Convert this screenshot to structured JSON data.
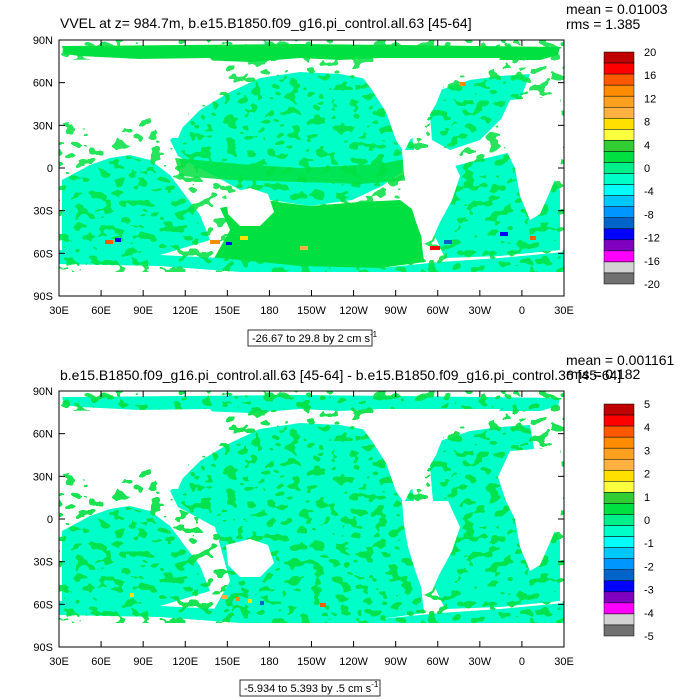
{
  "panels": [
    {
      "title": "VVEL at z= 984.7m, b.e15.B1850.f09_g16.pi_control.all.63 [45-64]",
      "stat_mean": "mean = 0.01003",
      "stat_rms": "rms = 1.385",
      "range_label": "-26.67 to 29.8 by 2 cm s",
      "range_unit_exp": "-1"
    },
    {
      "title": "b.e15.B1850.f09_g16.pi_control.all.63 [45-64] - b.e15.B1850.f09_g16.pi_control.36 [45-64]",
      "stat_mean": "mean = 0.001161",
      "stat_rms": "rms = 0.182",
      "range_label": "-5.934 to 5.393 by .5 cm s",
      "range_unit_exp": "-1"
    }
  ],
  "chart_data": [
    {
      "type": "heatmap",
      "title": "VVEL at z= 984.7m, b.e15.B1850.f09_g16.pi_control.all.63 [45-64]",
      "x_ticks": [
        "30E",
        "60E",
        "90E",
        "120E",
        "150E",
        "180",
        "150W",
        "120W",
        "90W",
        "60W",
        "30W",
        "0",
        "30E"
      ],
      "y_ticks": [
        "90N",
        "60N",
        "30N",
        "0",
        "30S",
        "60S",
        "90S"
      ],
      "xlim": [
        30,
        390
      ],
      "ylim": [
        -90,
        90
      ],
      "colorbar_labels": [
        "20",
        "16",
        "12",
        "8",
        "4",
        "0",
        "-4",
        "-8",
        "-12",
        "-16",
        "-20"
      ],
      "colorbar_colors": [
        "#c00000",
        "#ff0000",
        "#ff5a00",
        "#ff8c00",
        "#ffa020",
        "#ffb040",
        "#ffe000",
        "#ffff40",
        "#32cd32",
        "#00e040",
        "#00f08c",
        "#00ffc8",
        "#00ffff",
        "#00c8ff",
        "#0096ff",
        "#0064c8",
        "#0000ff",
        "#8000c0",
        "#ff00ff",
        "#d3d3d3",
        "#707070"
      ],
      "mean": 0.01003,
      "rms": 1.385,
      "contour_min": -26.67,
      "contour_max": 29.8,
      "contour_interval": 2,
      "units": "cm s^-1"
    },
    {
      "type": "heatmap",
      "title": "b.e15.B1850.f09_g16.pi_control.all.63 [45-64] - b.e15.B1850.f09_g16.pi_control.36 [45-64]",
      "x_ticks": [
        "30E",
        "60E",
        "90E",
        "120E",
        "150E",
        "180",
        "150W",
        "120W",
        "90W",
        "60W",
        "30W",
        "0",
        "30E"
      ],
      "y_ticks": [
        "90N",
        "60N",
        "30N",
        "0",
        "30S",
        "60S",
        "90S"
      ],
      "xlim": [
        30,
        390
      ],
      "ylim": [
        -90,
        90
      ],
      "colorbar_labels": [
        "5",
        "4",
        "3",
        "2",
        "1",
        "0",
        "-1",
        "-2",
        "-3",
        "-4",
        "-5"
      ],
      "colorbar_colors": [
        "#c00000",
        "#ff0000",
        "#ff5a00",
        "#ff8c00",
        "#ffa020",
        "#ffb040",
        "#ffe000",
        "#ffff40",
        "#32cd32",
        "#00e040",
        "#00f08c",
        "#00ffc8",
        "#00ffff",
        "#00c8ff",
        "#0096ff",
        "#0064c8",
        "#0000ff",
        "#8000c0",
        "#ff00ff",
        "#d3d3d3",
        "#707070"
      ],
      "mean": 0.001161,
      "rms": 0.182,
      "contour_min": -5.934,
      "contour_max": 5.393,
      "contour_interval": 0.5,
      "units": "cm s^-1"
    }
  ]
}
